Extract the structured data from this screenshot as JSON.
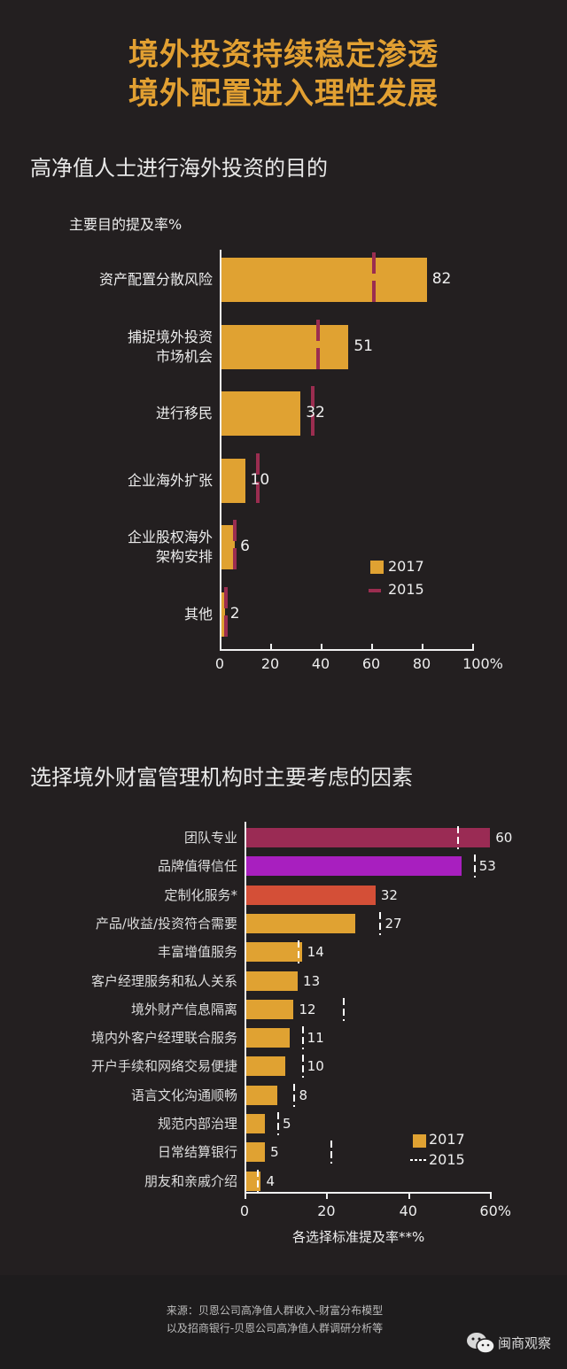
{
  "headline": {
    "line1": "境外投资持续稳定渗透",
    "line2": "境外配置进入理性发展"
  },
  "chart1": {
    "section_title": "高净值人士进行海外投资的目的",
    "axis_title": "主要目的提及率%",
    "legend": {
      "y2017": "2017",
      "y2015": "2015"
    }
  },
  "chart2": {
    "section_title": "选择境外财富管理机构时主要考虑的因素",
    "xlabel": "各选择标准提及率**%",
    "legend": {
      "y2017": "2017",
      "y2015": "2015"
    }
  },
  "footer": {
    "source_line1": "来源：贝恩公司高净值人群收入-财富分布模型",
    "source_line2": "以及招商银行-贝恩公司高净值人群调研分析等",
    "brand": "闽商观察",
    "brand_icon": "wechat-icon"
  },
  "colors": {
    "background": "#231f20",
    "headline": "#e2a032",
    "bar_2017": "#e0a232",
    "marker_2015_chart1": "#9b2d50",
    "team_bar": "#9a2b54",
    "brand_bar": "#a81fbf",
    "custom_bar": "#d44f37"
  },
  "chart_data": [
    {
      "type": "bar",
      "orientation": "horizontal",
      "title": "高净值人士进行海外投资的目的",
      "subtitle": "主要目的提及率%",
      "categories": [
        "资产配置分散风险",
        "捕捉境外投资市场机会",
        "进行移民",
        "企业海外扩张",
        "企业股权海外架构安排",
        "其他"
      ],
      "category_lines": [
        [
          "资产配置分散风险"
        ],
        [
          "捕捉境外投资",
          "市场机会"
        ],
        [
          "进行移民"
        ],
        [
          "企业海外扩张"
        ],
        [
          "企业股权海外",
          "架构安排"
        ],
        [
          "其他"
        ]
      ],
      "series": [
        {
          "name": "2017",
          "style": "bar",
          "values": [
            82,
            51,
            32,
            10,
            6,
            2
          ]
        },
        {
          "name": "2015",
          "style": "dashed-marker",
          "values": [
            61,
            39,
            37,
            15,
            6,
            2.5
          ]
        }
      ],
      "xticks": [
        "0",
        "20",
        "40",
        "60",
        "80",
        "100%"
      ],
      "xlim": [
        0,
        100
      ],
      "grid": false,
      "legend_position": "lower-right"
    },
    {
      "type": "bar",
      "orientation": "horizontal",
      "title": "选择境外财富管理机构时主要考虑的因素",
      "xlabel": "各选择标准提及率**%",
      "categories": [
        "团队专业",
        "品牌值得信任",
        "定制化服务*",
        "产品/收益/投资符合需要",
        "丰富增值服务",
        "客户经理服务和私人关系",
        "境外财产信息隔离",
        "境内外客户经理联合服务",
        "开户手续和网络交易便捷",
        "语言文化沟通顺畅",
        "规范内部治理",
        "日常结算银行",
        "朋友和亲戚介绍"
      ],
      "series": [
        {
          "name": "2017",
          "style": "bar",
          "values": [
            60,
            53,
            32,
            27,
            14,
            13,
            12,
            11,
            10,
            8,
            5,
            5,
            4
          ],
          "bar_colors": [
            "#9a2b54",
            "#a81fbf",
            "#d44f37",
            "#e0a232",
            "#e0a232",
            "#e0a232",
            "#e0a232",
            "#e0a232",
            "#e0a232",
            "#e0a232",
            "#e0a232",
            "#e0a232",
            "#e0a232"
          ]
        },
        {
          "name": "2015",
          "style": "dotted-marker",
          "values": [
            52,
            56,
            null,
            33,
            13,
            null,
            24,
            14,
            14,
            12,
            8,
            21,
            3
          ]
        }
      ],
      "xticks": [
        "0",
        "20",
        "40",
        "60%"
      ],
      "xlim": [
        0,
        60
      ],
      "grid": false,
      "legend_position": "lower-right"
    }
  ]
}
